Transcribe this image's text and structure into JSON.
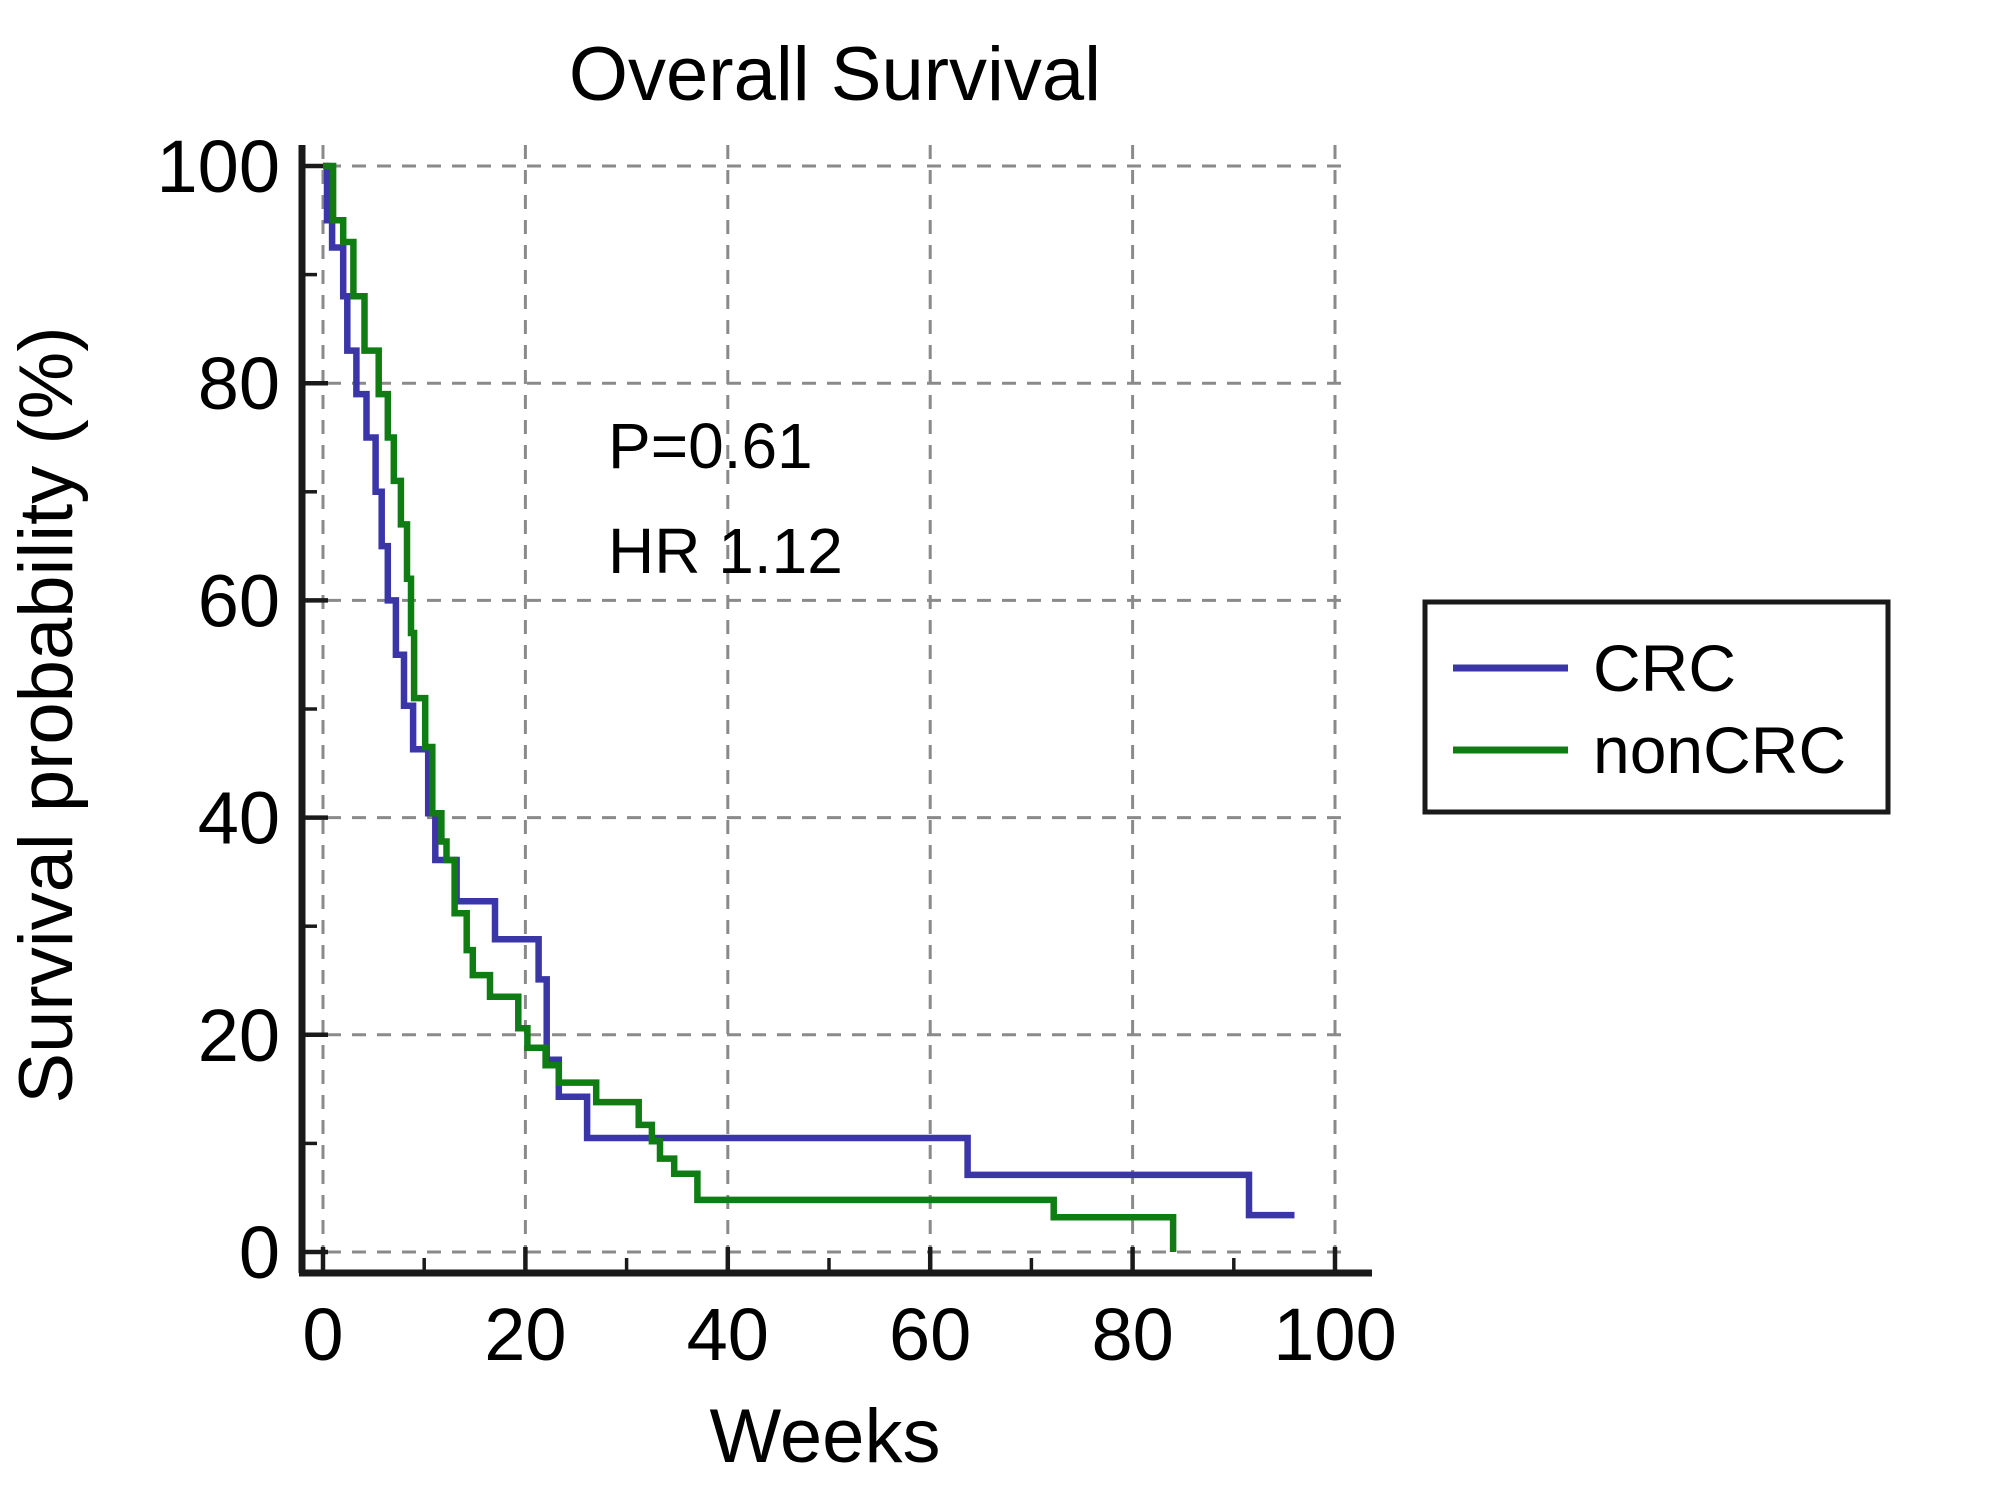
{
  "colors": {
    "crc_line": "#3a36a8",
    "noncrc_line": "#0f7d13",
    "grid": "#8a8a8a",
    "axis": "#1a1a1a",
    "text": "#000000",
    "background": "#ffffff",
    "legend_border": "#1a1a1a"
  },
  "chart_data": {
    "type": "line",
    "subtype": "kaplan-meier-step",
    "title": "Overall Survival",
    "xlabel": "Weeks",
    "ylabel": "Survival probability (%)",
    "xlim": [
      0,
      100
    ],
    "ylim": [
      0,
      100
    ],
    "x_major_ticks": [
      0,
      20,
      40,
      60,
      80,
      100
    ],
    "x_minor_ticks": [
      10,
      30,
      50,
      70,
      90
    ],
    "y_major_ticks": [
      0,
      20,
      40,
      60,
      80,
      100
    ],
    "y_minor_ticks": [
      10,
      30,
      50,
      70,
      90
    ],
    "grid": {
      "show": true,
      "style": "dashed",
      "on_x_values": [
        0,
        20,
        40,
        60,
        80,
        100
      ],
      "on_y_values": [
        0,
        20,
        40,
        60,
        80,
        100
      ]
    },
    "annotations": [
      "P=0.61",
      "HR 1.12"
    ],
    "legend": {
      "position": "outside-right",
      "entries": [
        "CRC",
        "nonCRC"
      ]
    },
    "series": [
      {
        "name": "CRC",
        "color_key": "crc_line",
        "step": "post",
        "points": [
          [
            0,
            100
          ],
          [
            0.4,
            95
          ],
          [
            0.9,
            92.5
          ],
          [
            2,
            88
          ],
          [
            2.4,
            83
          ],
          [
            3.3,
            79
          ],
          [
            4.3,
            75
          ],
          [
            5.2,
            70
          ],
          [
            5.8,
            65
          ],
          [
            6.4,
            60
          ],
          [
            7.2,
            55
          ],
          [
            8,
            50.3
          ],
          [
            8.9,
            46.3
          ],
          [
            10.4,
            40.4
          ],
          [
            11.1,
            36.1
          ],
          [
            13.2,
            32.3
          ],
          [
            17,
            28.8
          ],
          [
            21.3,
            25.1
          ],
          [
            22.1,
            17.7
          ],
          [
            23.3,
            14.3
          ],
          [
            26.1,
            10.5
          ],
          [
            63.7,
            7.1
          ],
          [
            91.5,
            3.4
          ],
          [
            96,
            3.4
          ]
        ]
      },
      {
        "name": "nonCRC",
        "color_key": "noncrc_line",
        "step": "post",
        "points": [
          [
            0,
            100
          ],
          [
            1,
            95
          ],
          [
            2,
            93
          ],
          [
            3,
            88
          ],
          [
            4.1,
            83
          ],
          [
            5.5,
            79
          ],
          [
            6.4,
            75
          ],
          [
            7,
            71
          ],
          [
            7.7,
            67
          ],
          [
            8.3,
            62
          ],
          [
            8.7,
            57
          ],
          [
            9,
            51
          ],
          [
            10.1,
            46.5
          ],
          [
            10.8,
            40.4
          ],
          [
            11.7,
            37.8
          ],
          [
            12.2,
            36.1
          ],
          [
            13,
            31.2
          ],
          [
            14.2,
            27.8
          ],
          [
            14.8,
            25.5
          ],
          [
            16.5,
            23.5
          ],
          [
            19.3,
            20.6
          ],
          [
            20.2,
            18.8
          ],
          [
            22,
            17.2
          ],
          [
            23.3,
            15.6
          ],
          [
            27,
            13.8
          ],
          [
            31.2,
            11.7
          ],
          [
            32.5,
            10.2
          ],
          [
            33.3,
            8.6
          ],
          [
            34.7,
            7.2
          ],
          [
            37,
            4.8
          ],
          [
            72.2,
            3.2
          ],
          [
            84,
            0
          ]
        ]
      }
    ]
  }
}
